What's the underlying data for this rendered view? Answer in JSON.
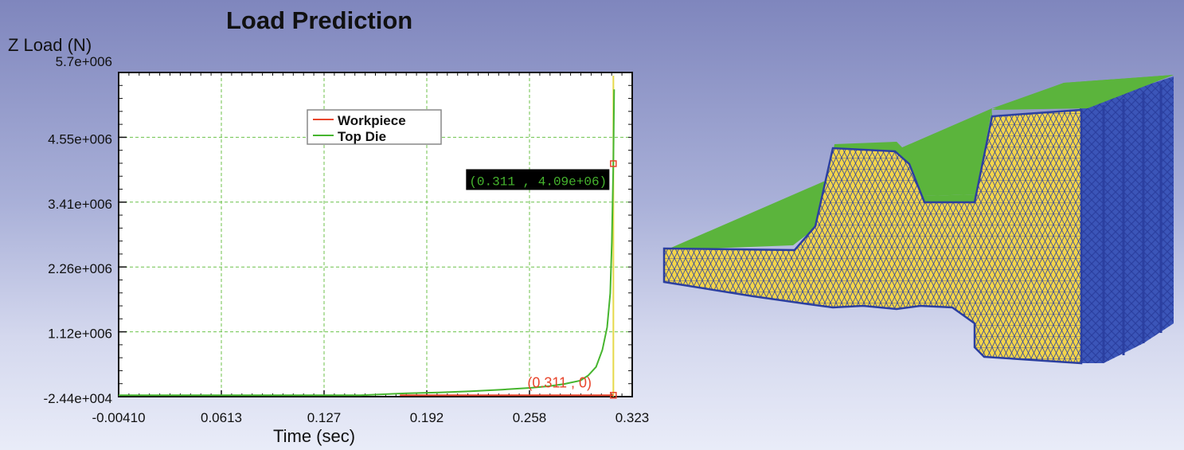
{
  "chart_data": {
    "type": "line",
    "title": "Load Prediction",
    "ylabel": "Z Load (N)",
    "xlabel": "Time (sec)",
    "xlim": [
      -0.0041,
      0.323
    ],
    "ylim": [
      -24400,
      5700000
    ],
    "x_ticks": [
      "-0.00410",
      "0.0613",
      "0.127",
      "0.192",
      "0.258",
      "0.323"
    ],
    "y_ticks": [
      "5.7e+006",
      "4.55e+006",
      "3.41e+006",
      "2.26e+006",
      "1.12e+006",
      "-2.44e+004"
    ],
    "grid": true,
    "legend_position": "top-center",
    "series": [
      {
        "name": "Workpiece",
        "color": "#e8452c",
        "x": [
          0.175,
          0.2,
          0.25,
          0.3,
          0.311
        ],
        "y": [
          0,
          0,
          0,
          0,
          0
        ]
      },
      {
        "name": "Top Die",
        "color": "#46b52e",
        "x": [
          -0.0041,
          0.1,
          0.15,
          0.175,
          0.2,
          0.22,
          0.24,
          0.258,
          0.27,
          0.28,
          0.29,
          0.295,
          0.3,
          0.304,
          0.307,
          0.309,
          0.31,
          0.311,
          0.3115
        ],
        "y": [
          0,
          0,
          0,
          30000,
          50000,
          70000,
          100000,
          130000,
          160000,
          200000,
          260000,
          350000,
          500000,
          800000,
          1200000,
          1800000,
          2700000,
          4090000,
          5400000
        ]
      }
    ],
    "annotations": [
      {
        "label": "(0.311 , 4.09e+06)",
        "x": 0.311,
        "y": 4090000,
        "color": "#46b52e",
        "background": "#000000"
      },
      {
        "label": "(0.311 , 0)",
        "x": 0.311,
        "y": 0,
        "color": "#e8452c"
      }
    ],
    "cursor_x": 0.311,
    "cursor_color": "#e6d94a"
  },
  "mesh_view": {
    "icon": "forging-mesh-model",
    "colors": {
      "body": "#f3d54a",
      "top": "#5bb43c",
      "edges": "#2b3fa0"
    }
  }
}
